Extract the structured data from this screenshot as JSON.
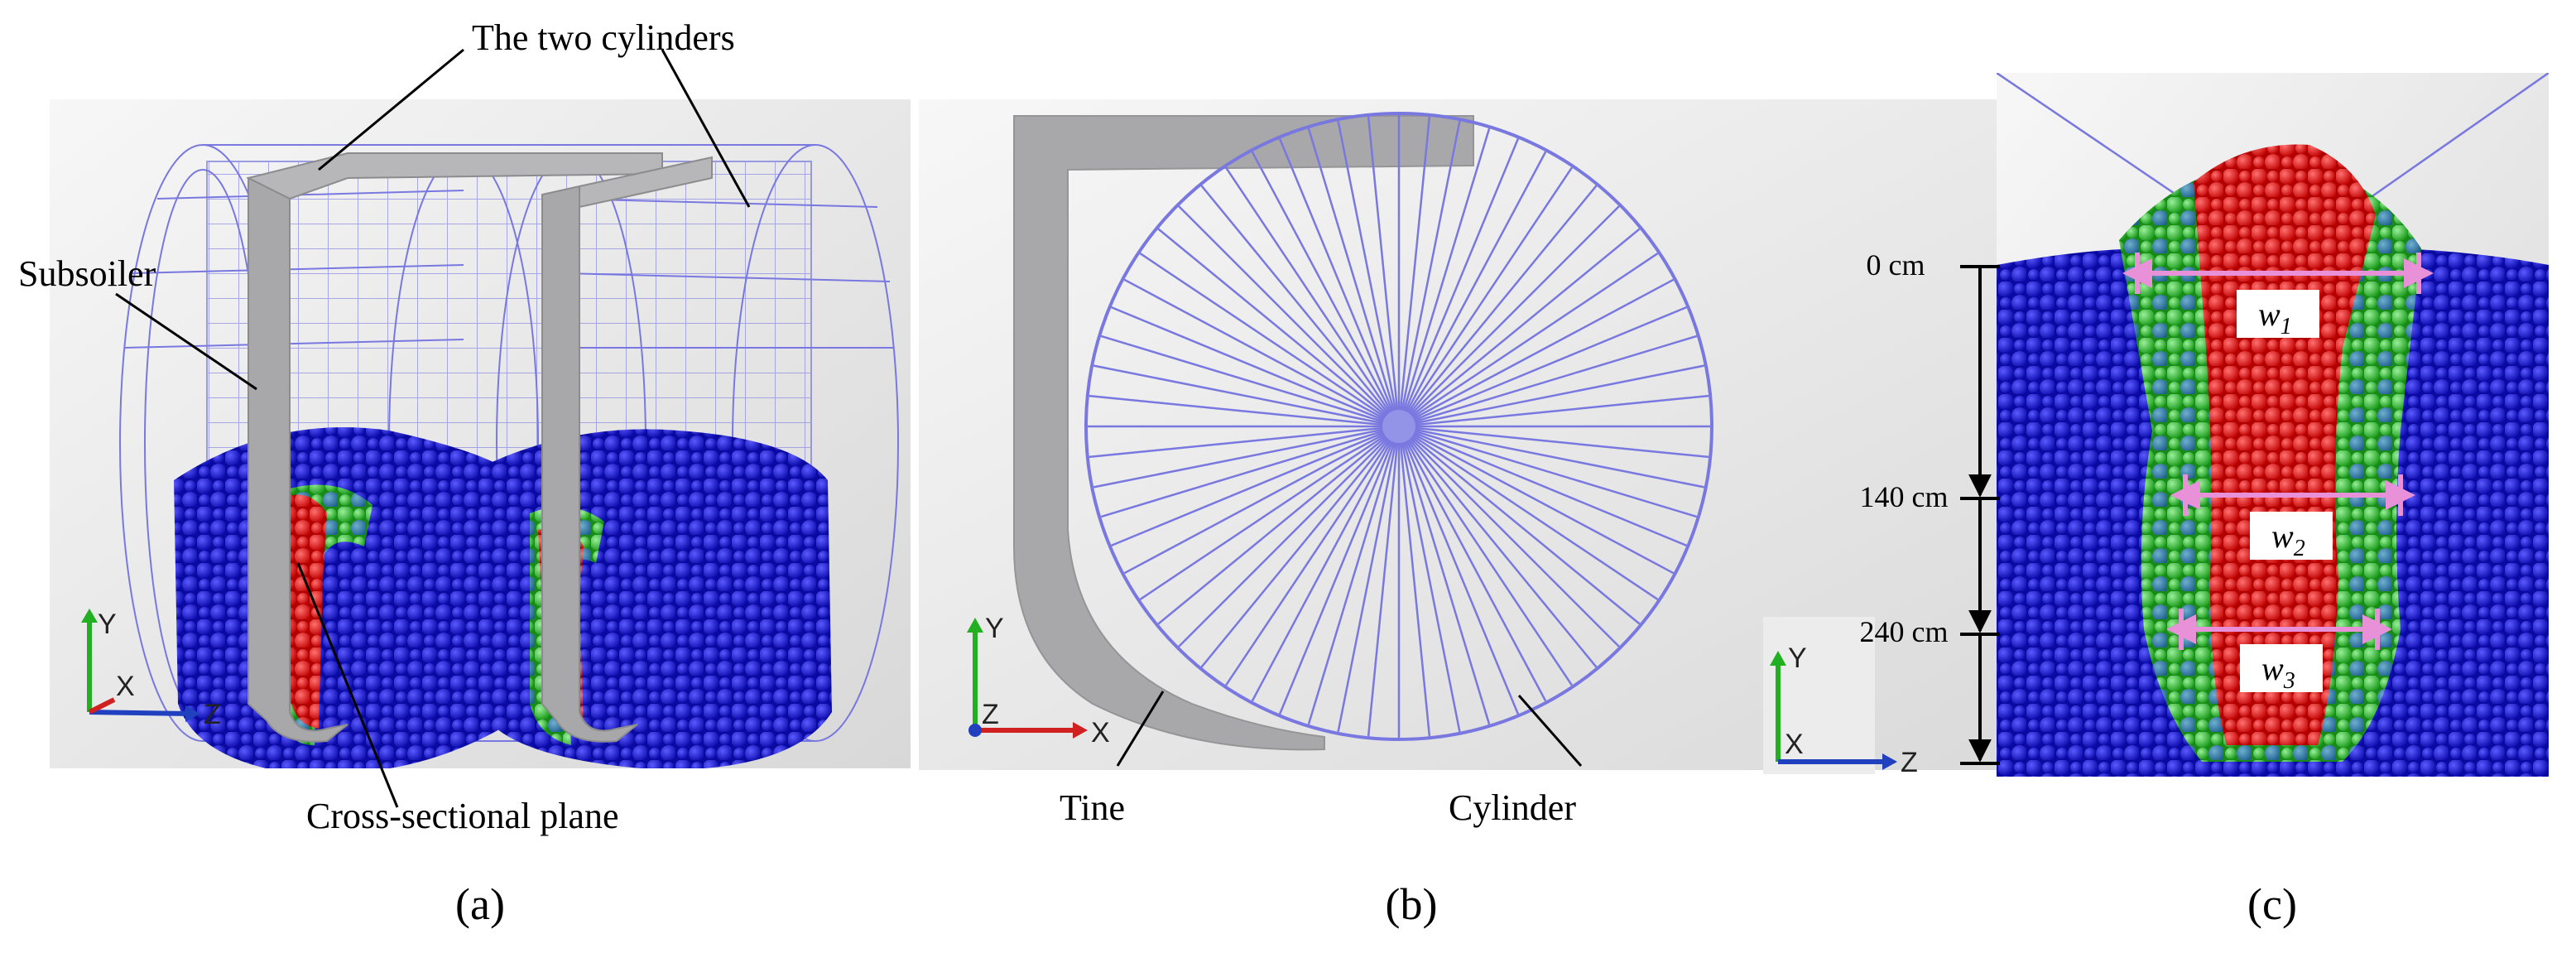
{
  "panel_a": {
    "label_cylinders": "The two cylinders",
    "label_subsoiler": "Subsoiler",
    "label_plane": "Cross-sectional plane",
    "caption": "(a)",
    "axes": {
      "y": "Y",
      "x": "X",
      "z": "Z"
    }
  },
  "panel_b": {
    "label_tine": "Tine",
    "label_cylinder": "Cylinder",
    "caption": "(b)",
    "axes": {
      "y": "Y",
      "z": "Z",
      "x": "X"
    }
  },
  "panel_c": {
    "depths": [
      "0 cm",
      "140 cm",
      "240 cm"
    ],
    "widths": [
      {
        "base": "w",
        "sub": "1"
      },
      {
        "base": "w",
        "sub": "2"
      },
      {
        "base": "w",
        "sub": "3"
      }
    ],
    "caption": "(c)",
    "axes": {
      "y": "Y",
      "x": "X",
      "z": "Z"
    }
  },
  "colors": {
    "particle_blue": "#1010c8",
    "particle_red": "#e01010",
    "particle_green": "#30c030",
    "wire": "#7878e0",
    "tine_gray": "#a8a8aa",
    "arrow_pink": "#e890d8"
  }
}
